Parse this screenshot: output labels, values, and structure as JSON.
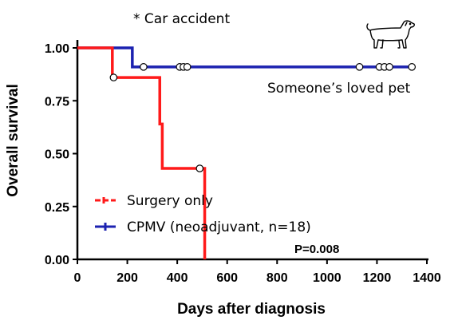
{
  "chart_data": {
    "type": "line",
    "subtype": "kaplan-meier",
    "xlabel": "Days after diagnosis",
    "ylabel": "Overall survival",
    "xlim": [
      0,
      1400
    ],
    "ylim": [
      0,
      1.0
    ],
    "x_ticks": [
      "0",
      "200",
      "400",
      "600",
      "800",
      "1000",
      "1200",
      "1400"
    ],
    "y_ticks": [
      "0.00",
      "0.25",
      "0.50",
      "0.75",
      "1.00"
    ],
    "grid": false,
    "legend_placement": "bottom-left",
    "series": [
      {
        "name": "Surgery only",
        "color": "#ff1a1a",
        "line_style": "step",
        "steps": [
          [
            0,
            1.0
          ],
          [
            140,
            0.86
          ],
          [
            330,
            0.64
          ],
          [
            340,
            0.43
          ],
          [
            510,
            0.0
          ]
        ],
        "censored": [
          [
            145,
            0.86
          ],
          [
            490,
            0.43
          ]
        ],
        "end_x": 515
      },
      {
        "name": "CPMV (neoadjuvant, n=18)",
        "color": "#1c22b0",
        "line_style": "step",
        "steps": [
          [
            0,
            1.0
          ],
          [
            220,
            0.91
          ]
        ],
        "censored": [
          [
            265,
            0.91
          ],
          [
            410,
            0.91
          ],
          [
            425,
            0.91
          ],
          [
            440,
            0.91
          ],
          [
            1130,
            0.91
          ],
          [
            1210,
            0.91
          ],
          [
            1230,
            0.91
          ],
          [
            1250,
            0.91
          ],
          [
            1340,
            0.91
          ]
        ],
        "end_x": 1345
      }
    ],
    "annotations": {
      "car_accident": "* Car accident",
      "pet": "Someone’s loved pet",
      "p_value": "P=0.008"
    },
    "icons": [
      "dog-icon"
    ]
  }
}
